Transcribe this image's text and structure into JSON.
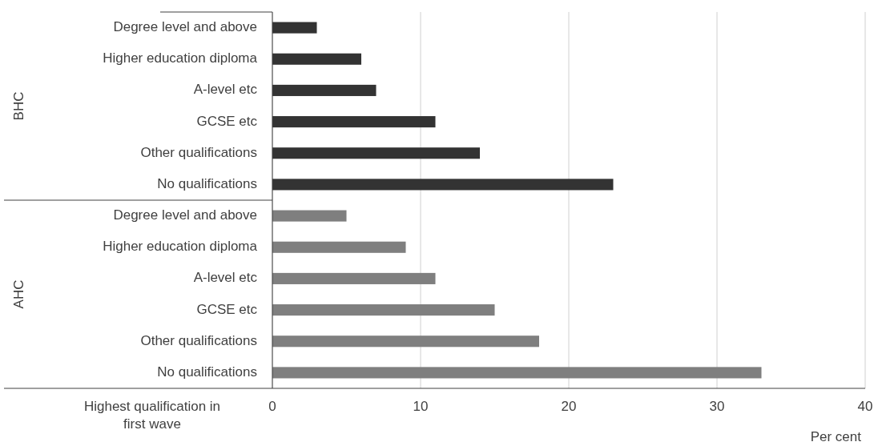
{
  "chart_data": {
    "type": "bar",
    "orientation": "horizontal",
    "xlabel": "Per cent",
    "ylabel": "Highest qualification in first wave",
    "categories": [
      "Degree level and above",
      "Higher education diploma",
      "A-level etc",
      "GCSE etc",
      "Other qualifications",
      "No qualifications",
      "Degree level and above",
      "Higher education diploma",
      "A-level etc",
      "GCSE etc",
      "Other qualifications",
      "No qualifications"
    ],
    "values": [
      3,
      6,
      7,
      11,
      14,
      23,
      5,
      9,
      11,
      15,
      18,
      33
    ],
    "colors": [
      "#333333",
      "#333333",
      "#333333",
      "#333333",
      "#333333",
      "#333333",
      "#7f7f7f",
      "#7f7f7f",
      "#7f7f7f",
      "#7f7f7f",
      "#7f7f7f",
      "#7f7f7f"
    ],
    "annotations": [
      "BHC",
      "AHC"
    ],
    "xlim": [
      0,
      40
    ],
    "xticks": [
      0,
      10,
      20,
      30,
      40
    ],
    "grid": "x"
  }
}
